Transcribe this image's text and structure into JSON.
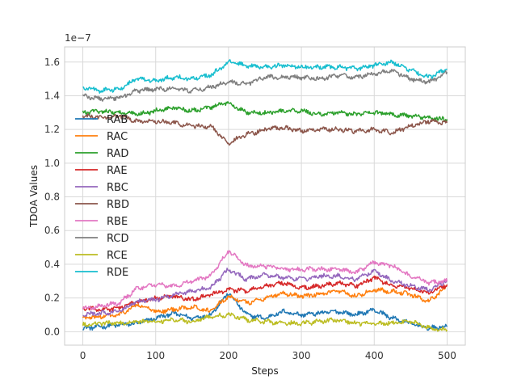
{
  "chart_data": {
    "type": "line",
    "xlabel": "Steps",
    "ylabel": "TDOA Values",
    "scale_label": "1e−7",
    "xlim": [
      -25,
      525
    ],
    "ylim": [
      -0.08,
      1.69
    ],
    "x_ticks": [
      0,
      100,
      200,
      300,
      400,
      500
    ],
    "x_tick_labels": [
      "0",
      "100",
      "200",
      "300",
      "400",
      "500"
    ],
    "y_ticks": [
      0.0,
      0.2,
      0.4,
      0.6,
      0.8,
      1.0,
      1.2,
      1.4,
      1.6
    ],
    "y_tick_labels": [
      "0.0",
      "0.2",
      "0.4",
      "0.6",
      "0.8",
      "1.0",
      "1.2",
      "1.4",
      "1.6"
    ],
    "grid": true,
    "legend_position": "left-middle",
    "x": [
      0,
      25,
      50,
      75,
      100,
      125,
      150,
      175,
      200,
      225,
      250,
      275,
      300,
      325,
      350,
      375,
      400,
      425,
      450,
      475,
      500
    ],
    "series": [
      {
        "name": "RAB",
        "color": "#1f77b4",
        "values": [
          0.02,
          0.03,
          0.04,
          0.05,
          0.08,
          0.11,
          0.08,
          0.1,
          0.23,
          0.1,
          0.08,
          0.12,
          0.1,
          0.11,
          0.12,
          0.1,
          0.13,
          0.08,
          0.05,
          0.02,
          0.03
        ]
      },
      {
        "name": "RAC",
        "color": "#ff7f0e",
        "values": [
          0.08,
          0.09,
          0.1,
          0.16,
          0.12,
          0.13,
          0.15,
          0.12,
          0.21,
          0.17,
          0.2,
          0.23,
          0.21,
          0.22,
          0.24,
          0.21,
          0.25,
          0.24,
          0.22,
          0.18,
          0.27
        ]
      },
      {
        "name": "RAD",
        "color": "#2ca02c",
        "values": [
          1.3,
          1.31,
          1.3,
          1.29,
          1.31,
          1.33,
          1.31,
          1.33,
          1.36,
          1.3,
          1.3,
          1.31,
          1.31,
          1.29,
          1.3,
          1.29,
          1.3,
          1.29,
          1.28,
          1.27,
          1.26
        ]
      },
      {
        "name": "RAE",
        "color": "#d62728",
        "values": [
          0.14,
          0.13,
          0.14,
          0.18,
          0.2,
          0.21,
          0.19,
          0.22,
          0.25,
          0.24,
          0.27,
          0.29,
          0.26,
          0.27,
          0.29,
          0.27,
          0.32,
          0.27,
          0.26,
          0.23,
          0.28
        ]
      },
      {
        "name": "RBC",
        "color": "#9467bd",
        "values": [
          0.1,
          0.11,
          0.12,
          0.18,
          0.19,
          0.22,
          0.24,
          0.26,
          0.37,
          0.31,
          0.34,
          0.32,
          0.31,
          0.33,
          0.33,
          0.31,
          0.36,
          0.3,
          0.27,
          0.25,
          0.3
        ]
      },
      {
        "name": "RBD",
        "color": "#8c564b",
        "values": [
          1.28,
          1.27,
          1.28,
          1.25,
          1.25,
          1.24,
          1.22,
          1.22,
          1.12,
          1.17,
          1.2,
          1.21,
          1.19,
          1.2,
          1.2,
          1.19,
          1.2,
          1.18,
          1.22,
          1.25,
          1.24
        ]
      },
      {
        "name": "RBE",
        "color": "#e377c2",
        "values": [
          0.14,
          0.15,
          0.17,
          0.26,
          0.28,
          0.27,
          0.3,
          0.33,
          0.48,
          0.39,
          0.39,
          0.37,
          0.37,
          0.37,
          0.37,
          0.35,
          0.41,
          0.39,
          0.33,
          0.29,
          0.3
        ]
      },
      {
        "name": "RCD",
        "color": "#7f7f7f",
        "values": [
          1.4,
          1.38,
          1.39,
          1.43,
          1.44,
          1.44,
          1.43,
          1.45,
          1.48,
          1.47,
          1.51,
          1.51,
          1.51,
          1.5,
          1.52,
          1.51,
          1.53,
          1.55,
          1.5,
          1.48,
          1.54
        ]
      },
      {
        "name": "RCE",
        "color": "#bcbd22",
        "values": [
          0.04,
          0.05,
          0.05,
          0.06,
          0.06,
          0.07,
          0.06,
          0.09,
          0.1,
          0.07,
          0.06,
          0.05,
          0.05,
          0.06,
          0.07,
          0.05,
          0.05,
          0.05,
          0.06,
          0.02,
          0.01
        ]
      },
      {
        "name": "RDE",
        "color": "#17becf",
        "values": [
          1.45,
          1.43,
          1.44,
          1.5,
          1.49,
          1.51,
          1.5,
          1.52,
          1.6,
          1.58,
          1.57,
          1.58,
          1.57,
          1.57,
          1.57,
          1.56,
          1.58,
          1.6,
          1.55,
          1.51,
          1.56
        ]
      }
    ]
  }
}
